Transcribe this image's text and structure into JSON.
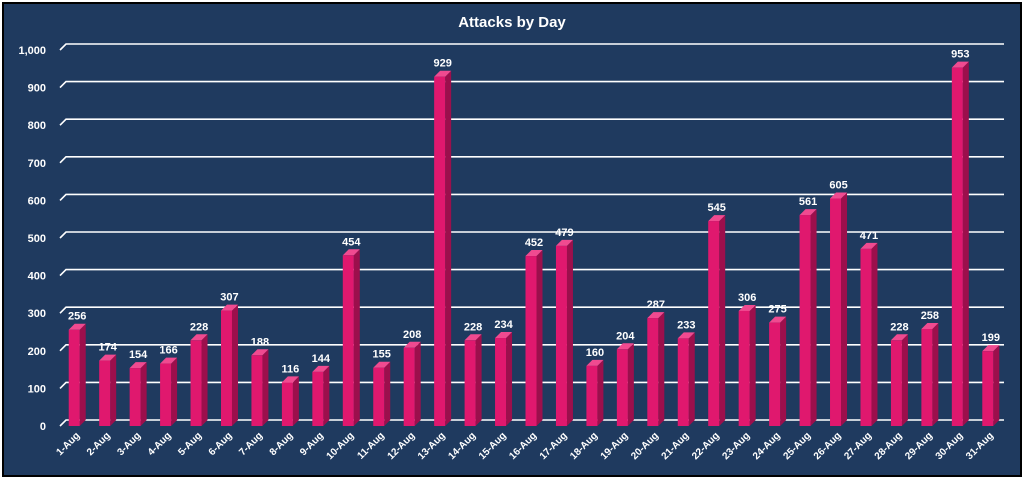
{
  "chart_data": {
    "type": "bar",
    "title": "Attacks by Day",
    "xlabel": "",
    "ylabel": "",
    "ylim": [
      0,
      1000
    ],
    "ytick_step": 100,
    "yticks": [
      "0",
      "100",
      "200",
      "300",
      "400",
      "500",
      "600",
      "700",
      "800",
      "900",
      "1,000"
    ],
    "grid": true,
    "legend": "none",
    "categories": [
      "1-Aug",
      "2-Aug",
      "3-Aug",
      "4-Aug",
      "5-Aug",
      "6-Aug",
      "7-Aug",
      "8-Aug",
      "9-Aug",
      "10-Aug",
      "11-Aug",
      "12-Aug",
      "13-Aug",
      "14-Aug",
      "15-Aug",
      "16-Aug",
      "17-Aug",
      "18-Aug",
      "19-Aug",
      "20-Aug",
      "21-Aug",
      "22-Aug",
      "23-Aug",
      "24-Aug",
      "25-Aug",
      "26-Aug",
      "27-Aug",
      "28-Aug",
      "29-Aug",
      "30-Aug",
      "31-Aug"
    ],
    "values": [
      256,
      174,
      154,
      166,
      228,
      307,
      188,
      116,
      144,
      454,
      155,
      208,
      929,
      228,
      234,
      452,
      479,
      160,
      204,
      287,
      233,
      545,
      306,
      275,
      561,
      605,
      471,
      228,
      258,
      953,
      199
    ],
    "colors": {
      "background": "#1f3a5f",
      "bar_front": "#e0186e",
      "bar_side": "#9c0f4c",
      "bar_top": "#f04a90",
      "grid": "#ffffff",
      "text": "#ffffff",
      "border": "#000000"
    }
  }
}
